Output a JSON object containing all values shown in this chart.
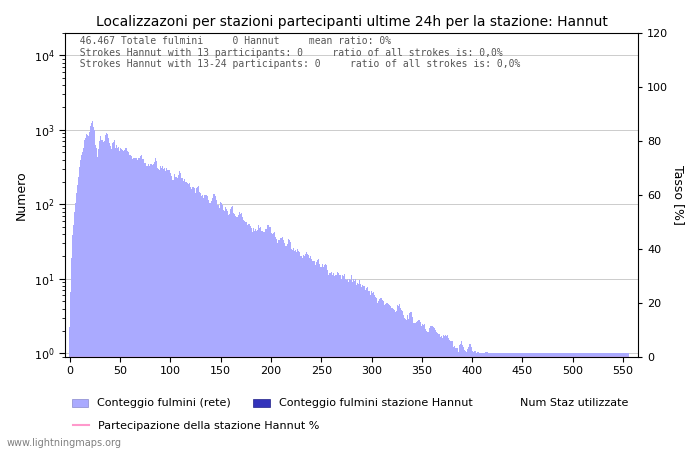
{
  "title": "Localizzazoni per stazioni partecipanti ultime 24h per la stazione: Hannut",
  "ylabel_left": "Numero",
  "ylabel_right": "Tasso [%]",
  "annotation_lines": [
    "46.467 Totale fulmini     0 Hannut     mean ratio: 0%",
    "Strokes Hannut with 13 participants: 0     ratio of all strokes is: 0,0%",
    "Strokes Hannut with 13-24 participants: 0     ratio of all strokes is: 0,0%"
  ],
  "xlim": [
    -5,
    565
  ],
  "ylim_right": [
    0,
    120
  ],
  "bar_color": "#aaaaff",
  "bar_color_station": "#3333bb",
  "participation_line_color": "#ff99cc",
  "grid_color": "#cccccc",
  "xticks": [
    0,
    50,
    100,
    150,
    200,
    250,
    300,
    350,
    400,
    450,
    500,
    550
  ],
  "yticks_right": [
    0,
    20,
    40,
    60,
    80,
    100,
    120
  ],
  "legend_entries": [
    "Conteggio fulmini (rete)",
    "Conteggio fulmini stazione Hannut",
    "Num Staz utilizzate",
    "Partecipazione della stazione Hannut %"
  ],
  "watermark": "www.lightningmaps.org",
  "figsize": [
    7.0,
    4.5
  ],
  "dpi": 100
}
